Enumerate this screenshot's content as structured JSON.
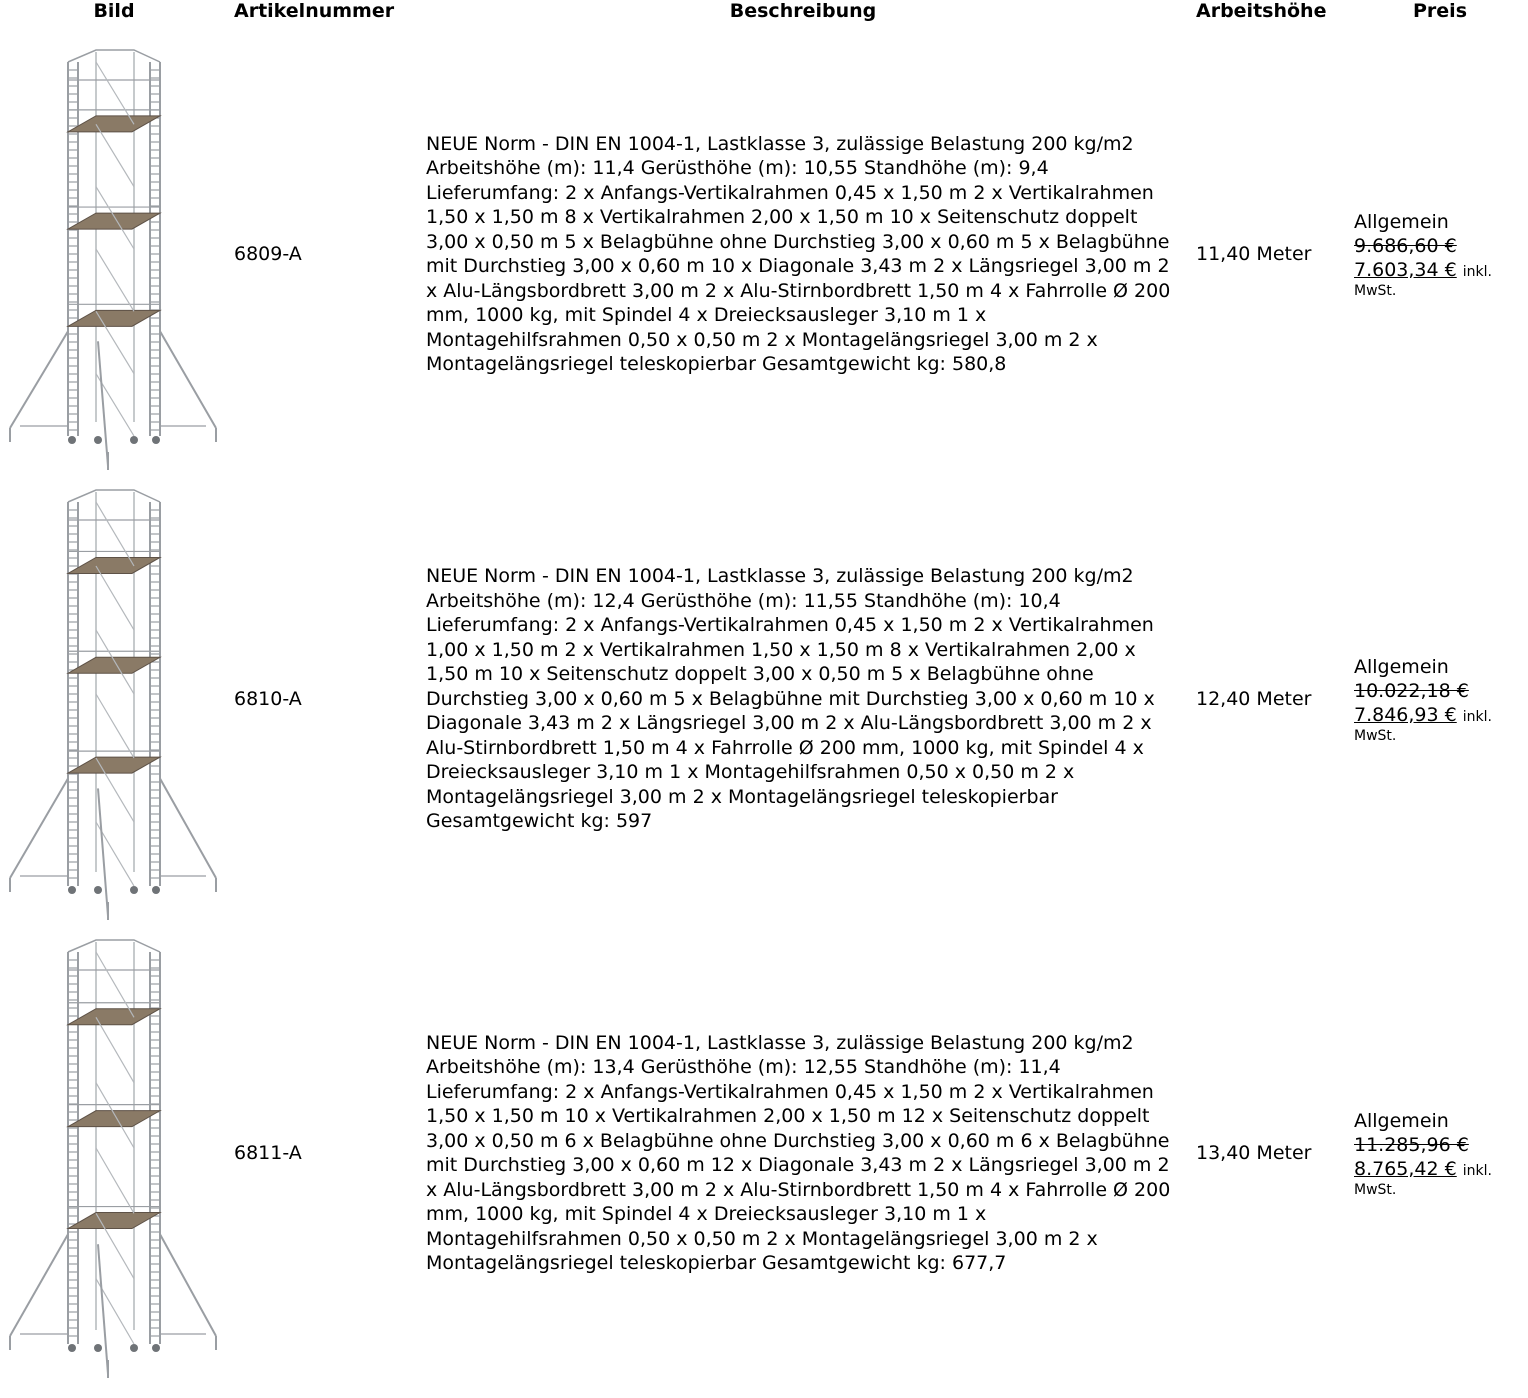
{
  "table": {
    "headers": {
      "image": "Bild",
      "article_number": "Artikelnummer",
      "description": "Beschreibung",
      "working_height": "Arbeitshöhe",
      "price": "Preis"
    },
    "rows": [
      {
        "article_number": "6809-A",
        "description": "NEUE Norm - DIN EN 1004-1, Lastklasse 3, zulässige Belastung 200 kg/m2 Arbeitshöhe (m): 11,4 Gerüsthöhe (m): 10,55 Standhöhe (m): 9,4 Lieferumfang: 2 x Anfangs-Vertikalrahmen 0,45 x 1,50 m 2 x Vertikalrahmen 1,50 x 1,50 m 8 x Vertikalrahmen 2,00 x 1,50 m 10 x Seitenschutz doppelt 3,00 x 0,50 m 5 x Belagbühne ohne Durchstieg 3,00 x 0,60 m 5 x Belagbühne mit Durchstieg 3,00 x 0,60 m 10 x Diagonale 3,43 m 2 x Längsriegel 3,00 m 2 x Alu-Längsbordbrett 3,00 m 2 x Alu-Stirnbordbrett 1,50 m 4 x Fahrrolle Ø 200 mm, 1000 kg, mit Spindel 4 x Dreiecksausleger 3,10 m 1 x Montagehilfsrahmen 0,50 x 0,50 m 2 x Montagelängsriegel 3,00 m 2 x Montagelängsriegel teleskopierbar Gesamtgewicht kg: 580,8",
        "working_height": "11,40 Meter",
        "price_label": "Allgemein",
        "old_price": "9.686,60 €",
        "new_price": "7.603,34 €",
        "vat_a": "inkl.",
        "vat_b": "MwSt."
      },
      {
        "article_number": "6810-A",
        "description": "NEUE Norm - DIN EN 1004-1, Lastklasse 3, zulässige Belastung 200 kg/m2 Arbeitshöhe (m): 12,4 Gerüsthöhe (m): 11,55 Standhöhe (m): 10,4 Lieferumfang: 2 x Anfangs-Vertikalrahmen 0,45 x 1,50 m 2 x Vertikalrahmen 1,00 x 1,50 m 2 x Vertikalrahmen 1,50 x 1,50 m 8 x Vertikalrahmen 2,00 x 1,50 m 10 x Seitenschutz doppelt 3,00 x 0,50 m 5 x Belagbühne ohne Durchstieg 3,00 x 0,60 m 5 x Belagbühne mit Durchstieg 3,00 x 0,60 m 10 x Diagonale 3,43 m 2 x Längsriegel 3,00 m 2 x Alu-Längsbordbrett 3,00 m 2 x Alu-Stirnbordbrett 1,50 m 4 x Fahrrolle Ø 200 mm, 1000 kg, mit Spindel 4 x Dreiecksausleger 3,10 m 1 x Montagehilfsrahmen 0,50 x 0,50 m 2 x Montagelängsriegel 3,00 m 2 x Montagelängsriegel teleskopierbar Gesamtgewicht kg: 597",
        "working_height": "12,40 Meter",
        "price_label": "Allgemein",
        "old_price": "10.022,18 €",
        "new_price": "7.846,93 €",
        "vat_a": "inkl.",
        "vat_b": "MwSt."
      },
      {
        "article_number": "6811-A",
        "description": "NEUE Norm - DIN EN 1004-1, Lastklasse 3, zulässige Belastung 200 kg/m2 Arbeitshöhe (m): 13,4 Gerüsthöhe (m): 12,55 Standhöhe (m): 11,4 Lieferumfang: 2 x Anfangs-Vertikalrahmen 0,45 x 1,50 m 2 x Vertikalrahmen 1,50 x 1,50 m 10 x Vertikalrahmen 2,00 x 1,50 m 12 x Seitenschutz doppelt 3,00 x 0,50 m 6 x Belagbühne ohne Durchstieg 3,00 x 0,60 m 6 x Belagbühne mit Durchstieg 3,00 x 0,60 m 12 x Diagonale 3,43 m 2 x Längsriegel 3,00 m 2 x Alu-Längsbordbrett 3,00 m 2 x Alu-Stirnbordbrett 1,50 m 4 x Fahrrolle Ø 200 mm, 1000 kg, mit Spindel 4 x Dreiecksausleger 3,10 m 1 x Montagehilfsrahmen 0,50 x 0,50 m 2 x Montagelängsriegel 3,00 m 2 x Montagelängsriegel teleskopierbar Gesamtgewicht kg: 677,7",
        "working_height": "13,40 Meter",
        "price_label": "Allgemein",
        "old_price": "11.285,96 €",
        "new_price": "8.765,42 €",
        "vat_a": "inkl.",
        "vat_b": "MwSt."
      }
    ]
  },
  "colors": {
    "scaffold_frame": "#9a9ea3",
    "platform_wood": "#8a7a66",
    "text": "#000000"
  }
}
